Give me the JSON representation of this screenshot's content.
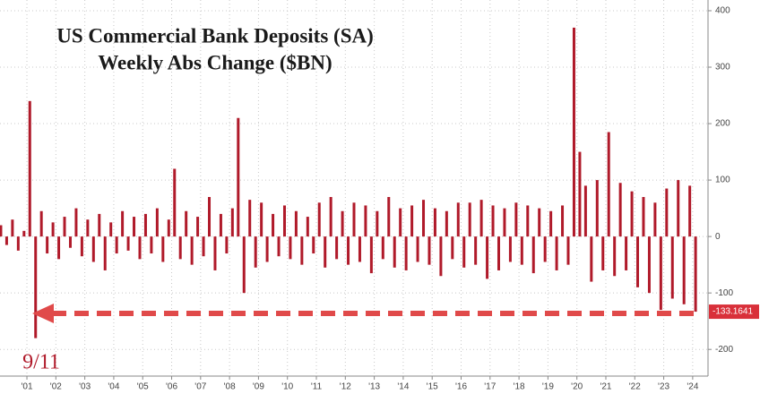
{
  "chart_data": {
    "type": "bar",
    "title": "US Commercial Bank Deposits (SA)",
    "subtitle": "Weekly Abs Change ($BN)",
    "annotations": [
      "9/11"
    ],
    "color": "#b01a2a",
    "grid": true,
    "x": [
      2000.1,
      2000.3,
      2000.5,
      2000.7,
      2000.9,
      2001.1,
      2001.3,
      2001.5,
      2001.7,
      2001.9,
      2002.1,
      2002.3,
      2002.5,
      2002.7,
      2002.9,
      2003.1,
      2003.3,
      2003.5,
      2003.7,
      2003.9,
      2004.1,
      2004.3,
      2004.5,
      2004.7,
      2004.9,
      2005.1,
      2005.3,
      2005.5,
      2005.7,
      2005.9,
      2006.1,
      2006.3,
      2006.5,
      2006.7,
      2006.9,
      2007.1,
      2007.3,
      2007.5,
      2007.7,
      2007.9,
      2008.1,
      2008.3,
      2008.5,
      2008.7,
      2008.9,
      2009.1,
      2009.3,
      2009.5,
      2009.7,
      2009.9,
      2010.1,
      2010.3,
      2010.5,
      2010.7,
      2010.9,
      2011.1,
      2011.3,
      2011.5,
      2011.7,
      2011.9,
      2012.1,
      2012.3,
      2012.5,
      2012.7,
      2012.9,
      2013.1,
      2013.3,
      2013.5,
      2013.7,
      2013.9,
      2014.1,
      2014.3,
      2014.5,
      2014.7,
      2014.9,
      2015.1,
      2015.3,
      2015.5,
      2015.7,
      2015.9,
      2016.1,
      2016.3,
      2016.5,
      2016.7,
      2016.9,
      2017.1,
      2017.3,
      2017.5,
      2017.7,
      2017.9,
      2018.1,
      2018.3,
      2018.5,
      2018.7,
      2018.9,
      2019.1,
      2019.3,
      2019.5,
      2019.7,
      2019.9,
      2020.1,
      2020.3,
      2020.5,
      2020.7,
      2020.9,
      2021.1,
      2021.3,
      2021.5,
      2021.7,
      2021.9,
      2022.1,
      2022.3,
      2022.5,
      2022.7,
      2022.9,
      2023.1,
      2023.3,
      2023.5,
      2023.7,
      2023.9,
      2024.1
    ],
    "values": [
      20,
      -15,
      30,
      -25,
      10,
      240,
      -180,
      45,
      -30,
      25,
      -40,
      35,
      -20,
      50,
      -35,
      30,
      -45,
      40,
      -60,
      25,
      -30,
      45,
      -25,
      35,
      -40,
      40,
      -30,
      50,
      -45,
      30,
      120,
      -40,
      45,
      -50,
      35,
      -35,
      70,
      -60,
      40,
      -30,
      50,
      210,
      -100,
      65,
      -55,
      60,
      -45,
      40,
      -35,
      55,
      -40,
      45,
      -50,
      35,
      -30,
      60,
      -55,
      70,
      -40,
      45,
      -50,
      60,
      -45,
      55,
      -65,
      45,
      -40,
      70,
      -55,
      50,
      -60,
      55,
      -45,
      65,
      -50,
      50,
      -70,
      45,
      -40,
      60,
      -55,
      60,
      -50,
      65,
      -75,
      55,
      -60,
      50,
      -45,
      60,
      -50,
      55,
      -65,
      50,
      -45,
      45,
      -60,
      55,
      -50,
      370,
      150,
      90,
      -80,
      100,
      -60,
      185,
      -70,
      95,
      -60,
      80,
      -90,
      70,
      -100,
      60,
      -130,
      85,
      -110,
      100,
      -120,
      90,
      -133.1641
    ],
    "xlim": [
      2000.07,
      2024.53
    ],
    "xticks": [
      {
        "value": 2001,
        "label": "'01"
      },
      {
        "value": 2002,
        "label": "'02"
      },
      {
        "value": 2003,
        "label": "'03"
      },
      {
        "value": 2004,
        "label": "'04"
      },
      {
        "value": 2005,
        "label": "'05"
      },
      {
        "value": 2006,
        "label": "'06"
      },
      {
        "value": 2007,
        "label": "'07"
      },
      {
        "value": 2008,
        "label": "'08"
      },
      {
        "value": 2009,
        "label": "'09"
      },
      {
        "value": 2010,
        "label": "'10"
      },
      {
        "value": 2011,
        "label": "'11"
      },
      {
        "value": 2012,
        "label": "'12"
      },
      {
        "value": 2013,
        "label": "'13"
      },
      {
        "value": 2014,
        "label": "'14"
      },
      {
        "value": 2015,
        "label": "'15"
      },
      {
        "value": 2016,
        "label": "'16"
      },
      {
        "value": 2017,
        "label": "'17"
      },
      {
        "value": 2018,
        "label": "'18"
      },
      {
        "value": 2019,
        "label": "'19"
      },
      {
        "value": 2020,
        "label": "'20"
      },
      {
        "value": 2021,
        "label": "'21"
      },
      {
        "value": 2022,
        "label": "'22"
      },
      {
        "value": 2023,
        "label": "'23"
      },
      {
        "value": 2024,
        "label": "'24"
      }
    ],
    "ylim": [
      -279,
      419
    ],
    "yticks": [
      -200,
      -100,
      0,
      100,
      200,
      300,
      400
    ]
  }
}
